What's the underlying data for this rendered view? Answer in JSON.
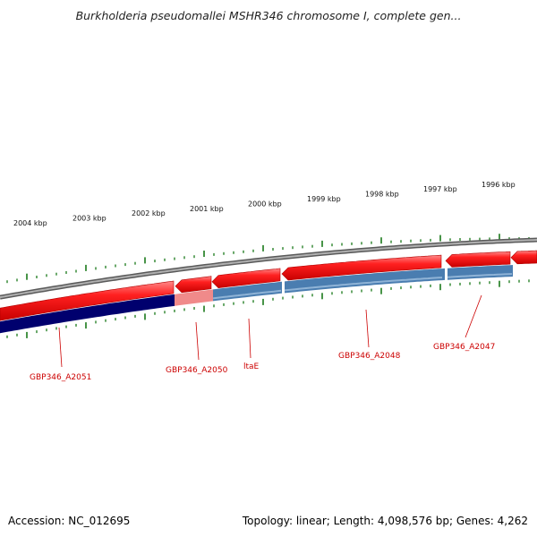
{
  "title": "Burkholderia pseudomallei MSHR346 chromosome I, complete gen...",
  "footer": {
    "accession": "Accession: NC_012695",
    "summary": "Topology: linear; Length: 4,098,576 bp; Genes: 4,262"
  },
  "ruler": {
    "labels": [
      "2004 kbp",
      "2003 kbp",
      "2002 kbp",
      "2001 kbp",
      "2000 kbp",
      "1999 kbp",
      "1998 kbp",
      "1997 kbp",
      "1996 kbp"
    ]
  },
  "genes": [
    {
      "label": "GBP346_A2051"
    },
    {
      "label": "GBP346_A2050"
    },
    {
      "label": "ltaE"
    },
    {
      "label": "GBP346_A2048"
    },
    {
      "label": "GBP346_A2047"
    }
  ],
  "colors": {
    "feature_red": "#e8141a",
    "feature_red_light": "#ff6b6b",
    "cds_blue": "#4a7db0",
    "cds_blue_dark": "#00006e",
    "cds_pink": "#f08a8a",
    "tick_green": "#1a7a1a",
    "backbone_grey": "#7a7a7a",
    "label_red": "#cc0000"
  }
}
